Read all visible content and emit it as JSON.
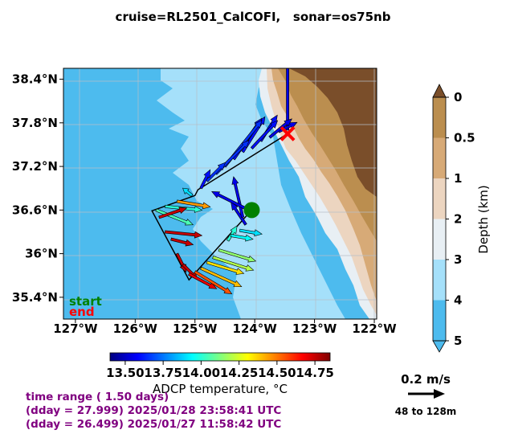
{
  "title": "cruise=RL2501_CalCOFI,   sonar=os75nb",
  "chart_data": {
    "type": "quiver-map",
    "lon_ticks": [
      "127°W",
      "126°W",
      "125°W",
      "124°W",
      "123°W",
      "122°W"
    ],
    "lat_ticks": [
      "38.4°N",
      "37.8°N",
      "37.2°N",
      "36.6°N",
      "36°N",
      "35.4°N"
    ],
    "xlim_lon": [
      -127.2,
      -121.96
    ],
    "ylim_lat": [
      35.1,
      38.55
    ],
    "start_label": "start",
    "end_label": "end",
    "start_color": "#008000",
    "end_color": "#ff0000",
    "track": [
      {
        "lon": -123.45,
        "lat": 37.65
      },
      {
        "lon": -124.95,
        "lat": 36.88
      },
      {
        "lon": -125.0,
        "lat": 36.8
      },
      {
        "lon": -125.72,
        "lat": 36.59
      },
      {
        "lon": -125.1,
        "lat": 35.64
      },
      {
        "lon": -124.05,
        "lat": 36.6
      }
    ],
    "vectors": [
      {
        "lon": -123.45,
        "lat": 37.7,
        "u": 0.0,
        "v": 0.43,
        "t": 13.55
      },
      {
        "lon": -123.6,
        "lat": 37.68,
        "u": 0.1,
        "v": 0.05,
        "t": 13.55
      },
      {
        "lon": -123.75,
        "lat": 37.6,
        "u": 0.12,
        "v": 0.1,
        "t": 13.55
      },
      {
        "lon": -123.9,
        "lat": 37.55,
        "u": 0.09,
        "v": 0.14,
        "t": 13.6
      },
      {
        "lon": -124.05,
        "lat": 37.45,
        "u": 0.14,
        "v": 0.15,
        "t": 13.6
      },
      {
        "lon": -124.2,
        "lat": 37.4,
        "u": 0.12,
        "v": 0.19,
        "t": 13.6
      },
      {
        "lon": -124.35,
        "lat": 37.3,
        "u": 0.15,
        "v": 0.22,
        "t": 13.6
      },
      {
        "lon": -124.5,
        "lat": 37.2,
        "u": 0.2,
        "v": 0.25,
        "t": 13.65
      },
      {
        "lon": -124.65,
        "lat": 37.1,
        "u": 0.18,
        "v": 0.18,
        "t": 13.65
      },
      {
        "lon": -124.8,
        "lat": 37.0,
        "u": 0.1,
        "v": 0.1,
        "t": 13.65
      },
      {
        "lon": -124.9,
        "lat": 36.9,
        "u": 0.05,
        "v": 0.1,
        "t": 13.6
      },
      {
        "lon": -125.05,
        "lat": 36.8,
        "u": -0.05,
        "v": 0.04,
        "t": 13.9
      },
      {
        "lon": -125.3,
        "lat": 36.72,
        "u": 0.18,
        "v": -0.03,
        "t": 14.45
      },
      {
        "lon": -125.5,
        "lat": 36.65,
        "u": 0.2,
        "v": -0.02,
        "t": 14.0
      },
      {
        "lon": -125.65,
        "lat": 36.6,
        "u": 0.2,
        "v": -0.08,
        "t": 14.05
      },
      {
        "lon": -125.6,
        "lat": 36.5,
        "u": 0.15,
        "v": 0.05,
        "t": 14.75
      },
      {
        "lon": -125.5,
        "lat": 36.3,
        "u": 0.2,
        "v": -0.02,
        "t": 14.75
      },
      {
        "lon": -125.4,
        "lat": 36.2,
        "u": 0.12,
        "v": -0.03,
        "t": 14.75
      },
      {
        "lon": -125.3,
        "lat": 36.0,
        "u": 0.05,
        "v": -0.1,
        "t": 14.75
      },
      {
        "lon": -125.2,
        "lat": 35.85,
        "u": 0.08,
        "v": -0.08,
        "t": 14.75
      },
      {
        "lon": -125.1,
        "lat": 35.72,
        "u": 0.15,
        "v": -0.08,
        "t": 14.7
      },
      {
        "lon": -125.0,
        "lat": 35.75,
        "u": 0.2,
        "v": -0.12,
        "t": 14.55
      },
      {
        "lon": -124.9,
        "lat": 35.8,
        "u": 0.22,
        "v": -0.1,
        "t": 14.4
      },
      {
        "lon": -124.8,
        "lat": 35.88,
        "u": 0.2,
        "v": -0.06,
        "t": 14.35
      },
      {
        "lon": -124.7,
        "lat": 35.95,
        "u": 0.22,
        "v": -0.07,
        "t": 14.2
      },
      {
        "lon": -124.6,
        "lat": 36.05,
        "u": 0.2,
        "v": -0.06,
        "t": 14.15
      },
      {
        "lon": -124.45,
        "lat": 36.18,
        "u": 0.05,
        "v": 0.08,
        "t": 14.0
      },
      {
        "lon": -124.4,
        "lat": 36.25,
        "u": 0.12,
        "v": -0.02,
        "t": 13.95
      },
      {
        "lon": -124.25,
        "lat": 36.32,
        "u": 0.12,
        "v": -0.02,
        "t": 13.9
      },
      {
        "lon": -124.15,
        "lat": 36.4,
        "u": -0.08,
        "v": 0.12,
        "t": 13.55
      },
      {
        "lon": -124.2,
        "lat": 36.5,
        "u": -0.05,
        "v": 0.22,
        "t": 13.55
      },
      {
        "lon": -124.1,
        "lat": 36.6,
        "u": -0.2,
        "v": 0.1,
        "t": 13.55
      }
    ],
    "colorbar_temperature": {
      "label": "ADCP temperature, °C",
      "min": 13.4,
      "max": 14.85,
      "ticks": [
        "13.50",
        "13.75",
        "14.00",
        "14.25",
        "14.50",
        "14.75"
      ]
    },
    "colorbar_depth": {
      "label": "Depth (km)",
      "ticks": [
        "0",
        "0.5",
        "1",
        "2",
        "3",
        "4",
        "5"
      ],
      "colors": [
        "#bb8e4f",
        "#d7aa77",
        "#ecd5c0",
        "#e8eff4",
        "#a5e0fa",
        "#4dbbee"
      ],
      "extend_top_color": "#7a4e2a",
      "extend_bottom_color": "#4dbbee"
    },
    "scale_arrow": {
      "label": "0.2 m/s",
      "depth_range": "48 to 128m"
    },
    "time_range": [
      "time range ( 1.50 days)",
      "(dday = 27.999) 2025/01/28 23:58:41 UTC",
      "(dday = 26.499) 2025/01/27 11:58:42 UTC"
    ]
  }
}
